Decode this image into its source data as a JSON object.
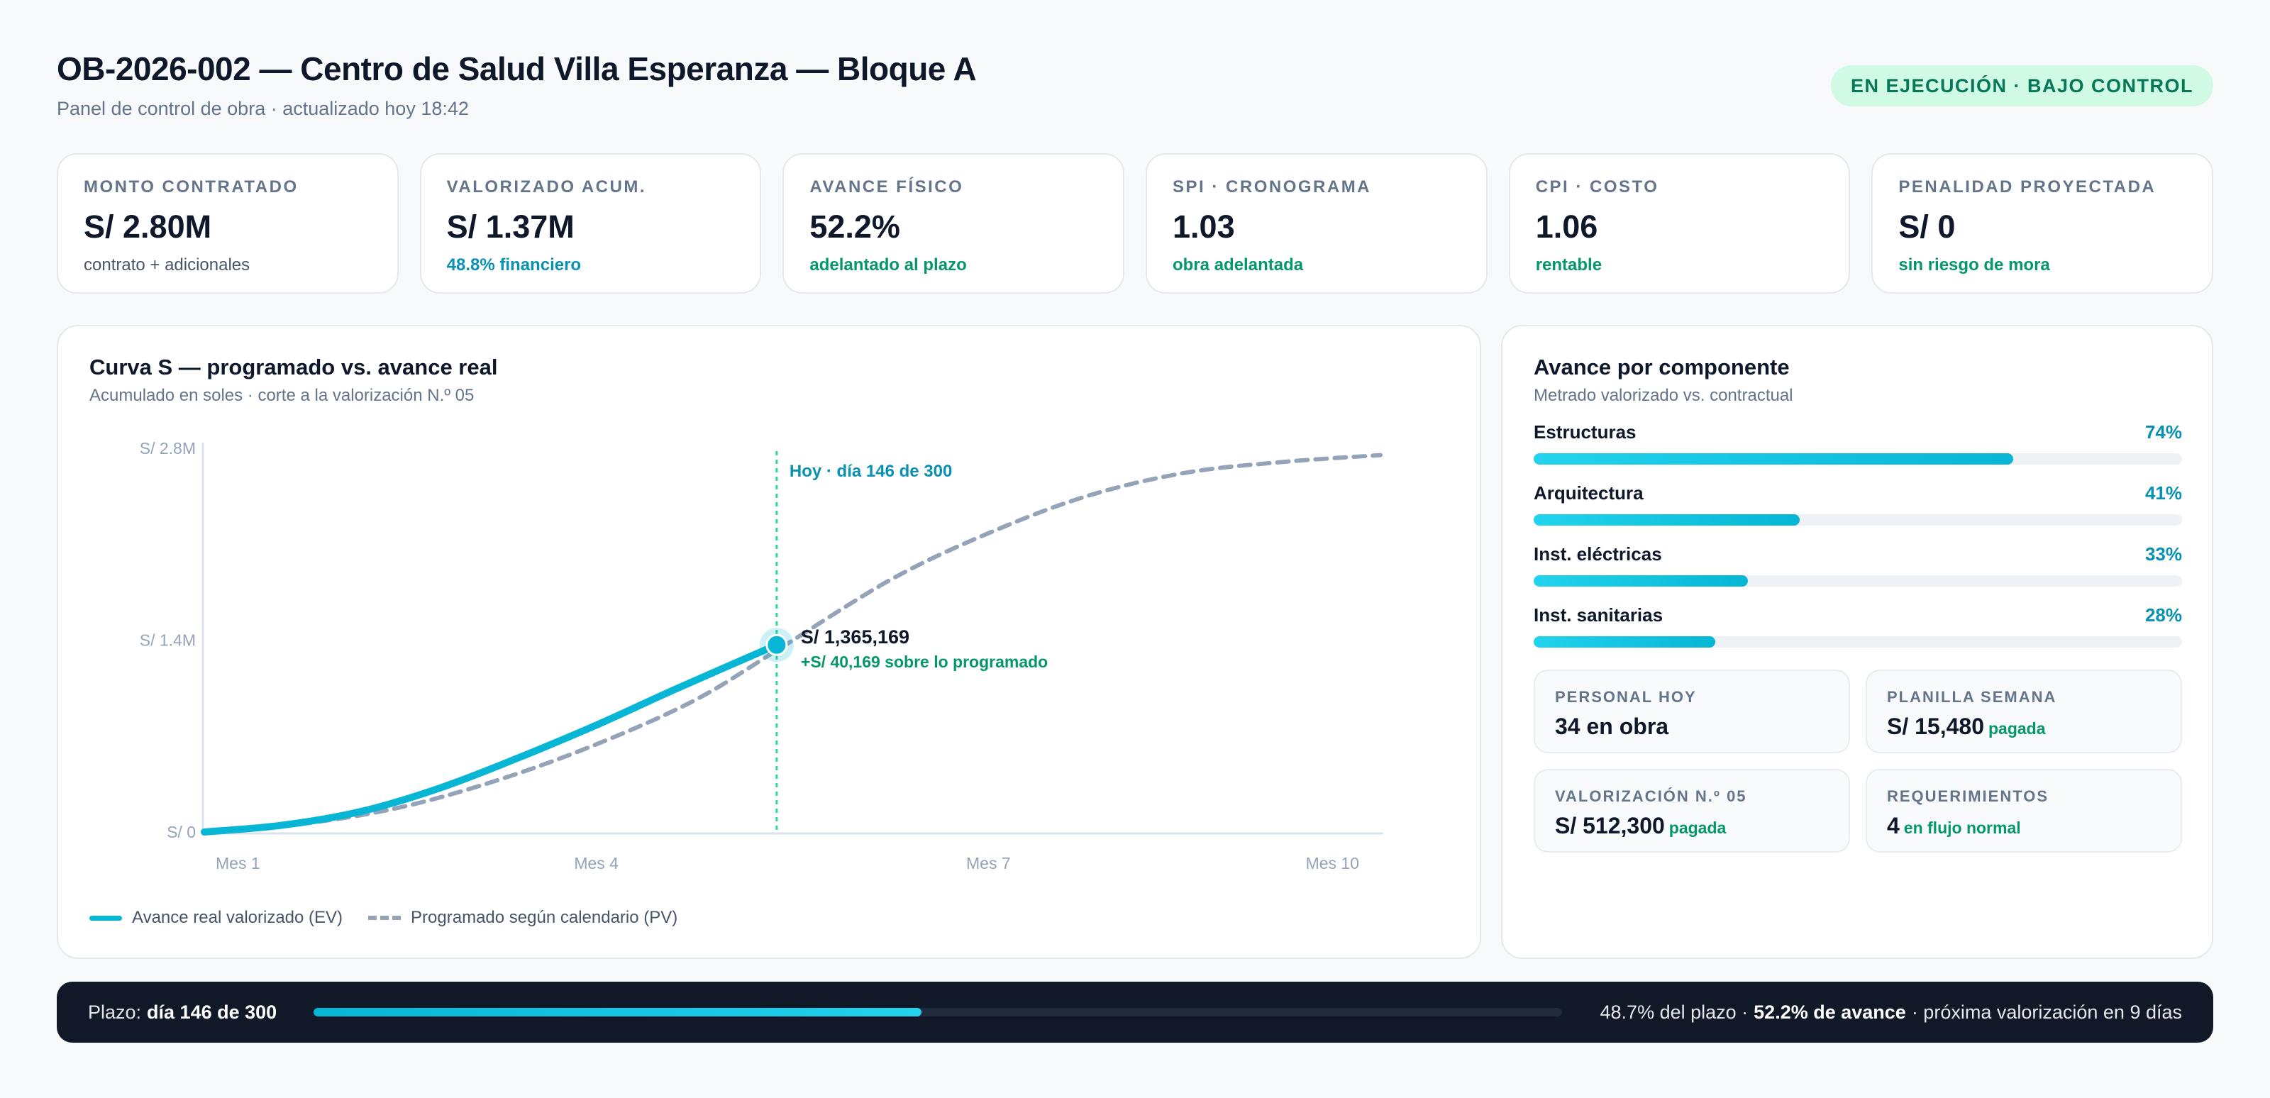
{
  "header": {
    "title": "OB-2026-002 — Centro de Salud Villa Esperanza — Bloque A",
    "subtitle": "Panel de control de obra · actualizado hoy 18:42",
    "status": "EN EJECUCIÓN · BAJO CONTROL"
  },
  "kpis": [
    {
      "label": "MONTO CONTRATADO",
      "value": "S/ 2.80M",
      "note": "contrato + adicionales"
    },
    {
      "label": "VALORIZADO ACUM.",
      "value": "S/ 1.37M",
      "note": "48.8% financiero"
    },
    {
      "label": "AVANCE FÍSICO",
      "value": "52.2%",
      "note": "adelantado al plazo"
    },
    {
      "label": "SPI · CRONOGRAMA",
      "value": "1.03",
      "note": "obra adelantada"
    },
    {
      "label": "CPI · COSTO",
      "value": "1.06",
      "note": "rentable"
    },
    {
      "label": "PENALIDAD PROYECTADA",
      "value": "S/ 0",
      "note": "sin riesgo de mora"
    }
  ],
  "chart": {
    "title": "Curva S — programado vs. avance real",
    "subtitle": "Acumulado en soles · corte a la valorización N.º 05",
    "today_label": "Hoy · día 146 de 300",
    "point_label": "S/ 1,365,169",
    "point_delta": "+S/ 40,169 sobre lo programado",
    "legend_ev": "Avance real valorizado (EV)",
    "legend_pv": "Programado según calendario (PV)"
  },
  "chart_data": {
    "type": "line",
    "y_ticks": [
      "S/ 0",
      "S/ 1.4M",
      "S/ 2.8M"
    ],
    "x_ticks": [
      "Mes 1",
      "Mes 4",
      "Mes 7",
      "Mes 10"
    ],
    "ylim": [
      0,
      2800000
    ],
    "xlim": [
      0,
      300
    ],
    "x_tick_days": [
      0,
      100,
      200,
      300
    ],
    "today_day": 146,
    "series": [
      {
        "name": "Avance real valorizado (EV)",
        "x": [
          0,
          20,
          40,
          60,
          80,
          100,
          120,
          146
        ],
        "y": [
          0,
          50000,
          150000,
          320000,
          540000,
          780000,
          1040000,
          1365169
        ]
      },
      {
        "name": "Programado según calendario (PV)",
        "x": [
          0,
          25,
          50,
          75,
          100,
          125,
          146,
          175,
          200,
          225,
          250,
          275,
          300
        ],
        "y": [
          0,
          60000,
          180000,
          380000,
          640000,
          960000,
          1325000,
          1840000,
          2180000,
          2450000,
          2620000,
          2700000,
          2750000
        ]
      }
    ]
  },
  "components": {
    "title": "Avance por componente",
    "subtitle": "Metrado valorizado vs. contractual",
    "items": [
      {
        "name": "Estructuras",
        "pct_label": "74%",
        "pct": 74
      },
      {
        "name": "Arquitectura",
        "pct_label": "41%",
        "pct": 41
      },
      {
        "name": "Inst. eléctricas",
        "pct_label": "33%",
        "pct": 33
      },
      {
        "name": "Inst. sanitarias",
        "pct_label": "28%",
        "pct": 28
      }
    ]
  },
  "mini": [
    {
      "label": "PERSONAL HOY",
      "value": "34 en obra",
      "note": ""
    },
    {
      "label": "PLANILLA SEMANA",
      "value": "S/ 15,480",
      "note": "pagada"
    },
    {
      "label": "VALORIZACIÓN N.º 05",
      "value": "S/ 512,300",
      "note": "pagada"
    },
    {
      "label": "REQUERIMIENTOS",
      "value": "4",
      "note": "en flujo normal"
    }
  ],
  "timeline": {
    "prefix": "Plazo:",
    "day": "día 146 de 300",
    "progress": 0.487,
    "pct_plazo": "48.7% del plazo ·",
    "avance": "52.2% de avance",
    "next": "· próxima valorización en 9 días"
  },
  "colors": {
    "accent": "#06b6d4",
    "programmed": "#94a3b8",
    "positive": "#059669",
    "today_line": "#34d399"
  }
}
